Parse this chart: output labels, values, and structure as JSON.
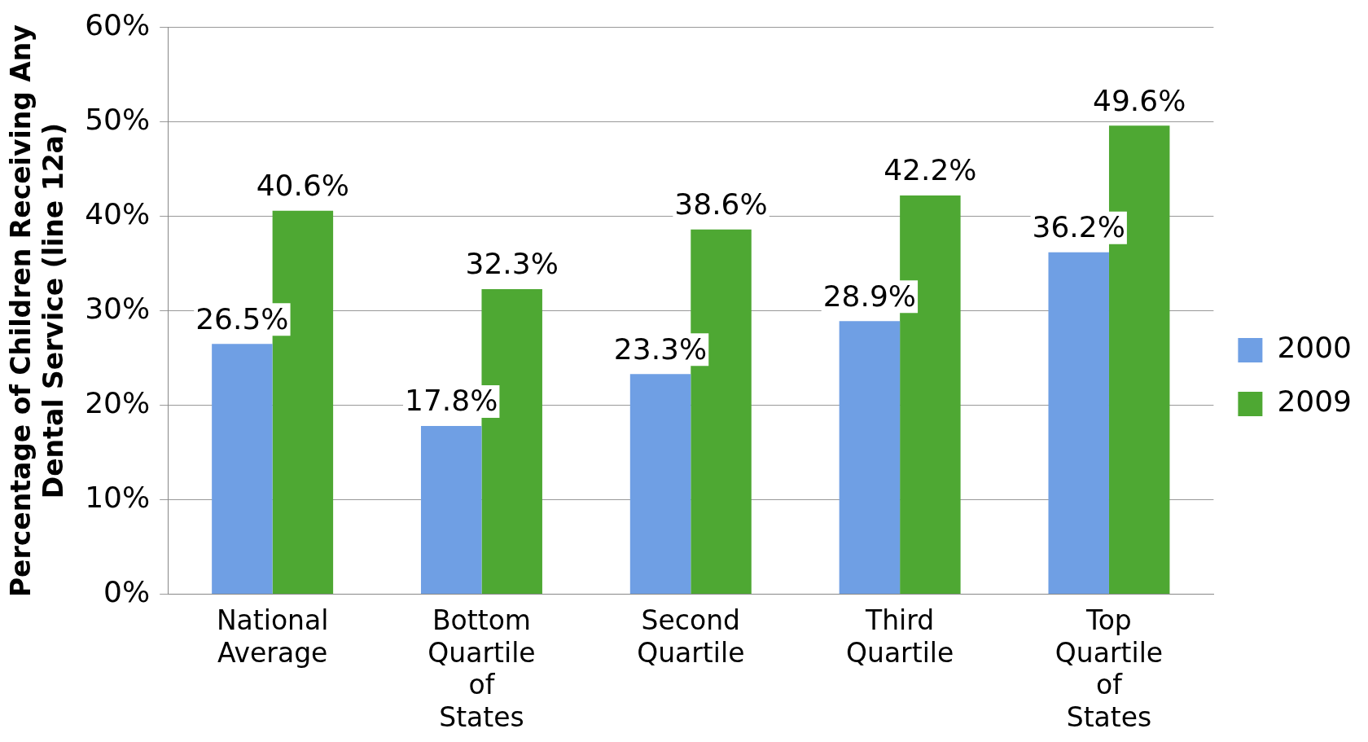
{
  "chart_data": {
    "type": "bar",
    "ylabel": "Percentage of Children Receiving Any Dental Service (line 12a)",
    "categories": [
      "National Average",
      "Bottom Quartile of States",
      "Second Quartile",
      "Third Quartile",
      "Top Quartile of States"
    ],
    "series": [
      {
        "name": "2000",
        "color": "#6f9fe4",
        "values": [
          26.5,
          17.8,
          23.3,
          28.9,
          36.2
        ],
        "value_labels": [
          "26.5%",
          "17.8%",
          "23.3%",
          "28.9%",
          "36.2%"
        ]
      },
      {
        "name": "2009",
        "color": "#4ea833",
        "values": [
          40.6,
          32.3,
          38.6,
          42.2,
          49.6
        ],
        "value_labels": [
          "40.6%",
          "32.3%",
          "38.6%",
          "42.2%",
          "49.6%"
        ]
      }
    ],
    "ylim": [
      0,
      60
    ],
    "yticks": [
      {
        "value": 0,
        "label": "0%"
      },
      {
        "value": 10,
        "label": "10%"
      },
      {
        "value": 20,
        "label": "20%"
      },
      {
        "value": 30,
        "label": "30%"
      },
      {
        "value": 40,
        "label": "40%"
      },
      {
        "value": 50,
        "label": "50%"
      },
      {
        "value": 60,
        "label": "60%"
      }
    ],
    "grid": "y",
    "legend": "right"
  }
}
